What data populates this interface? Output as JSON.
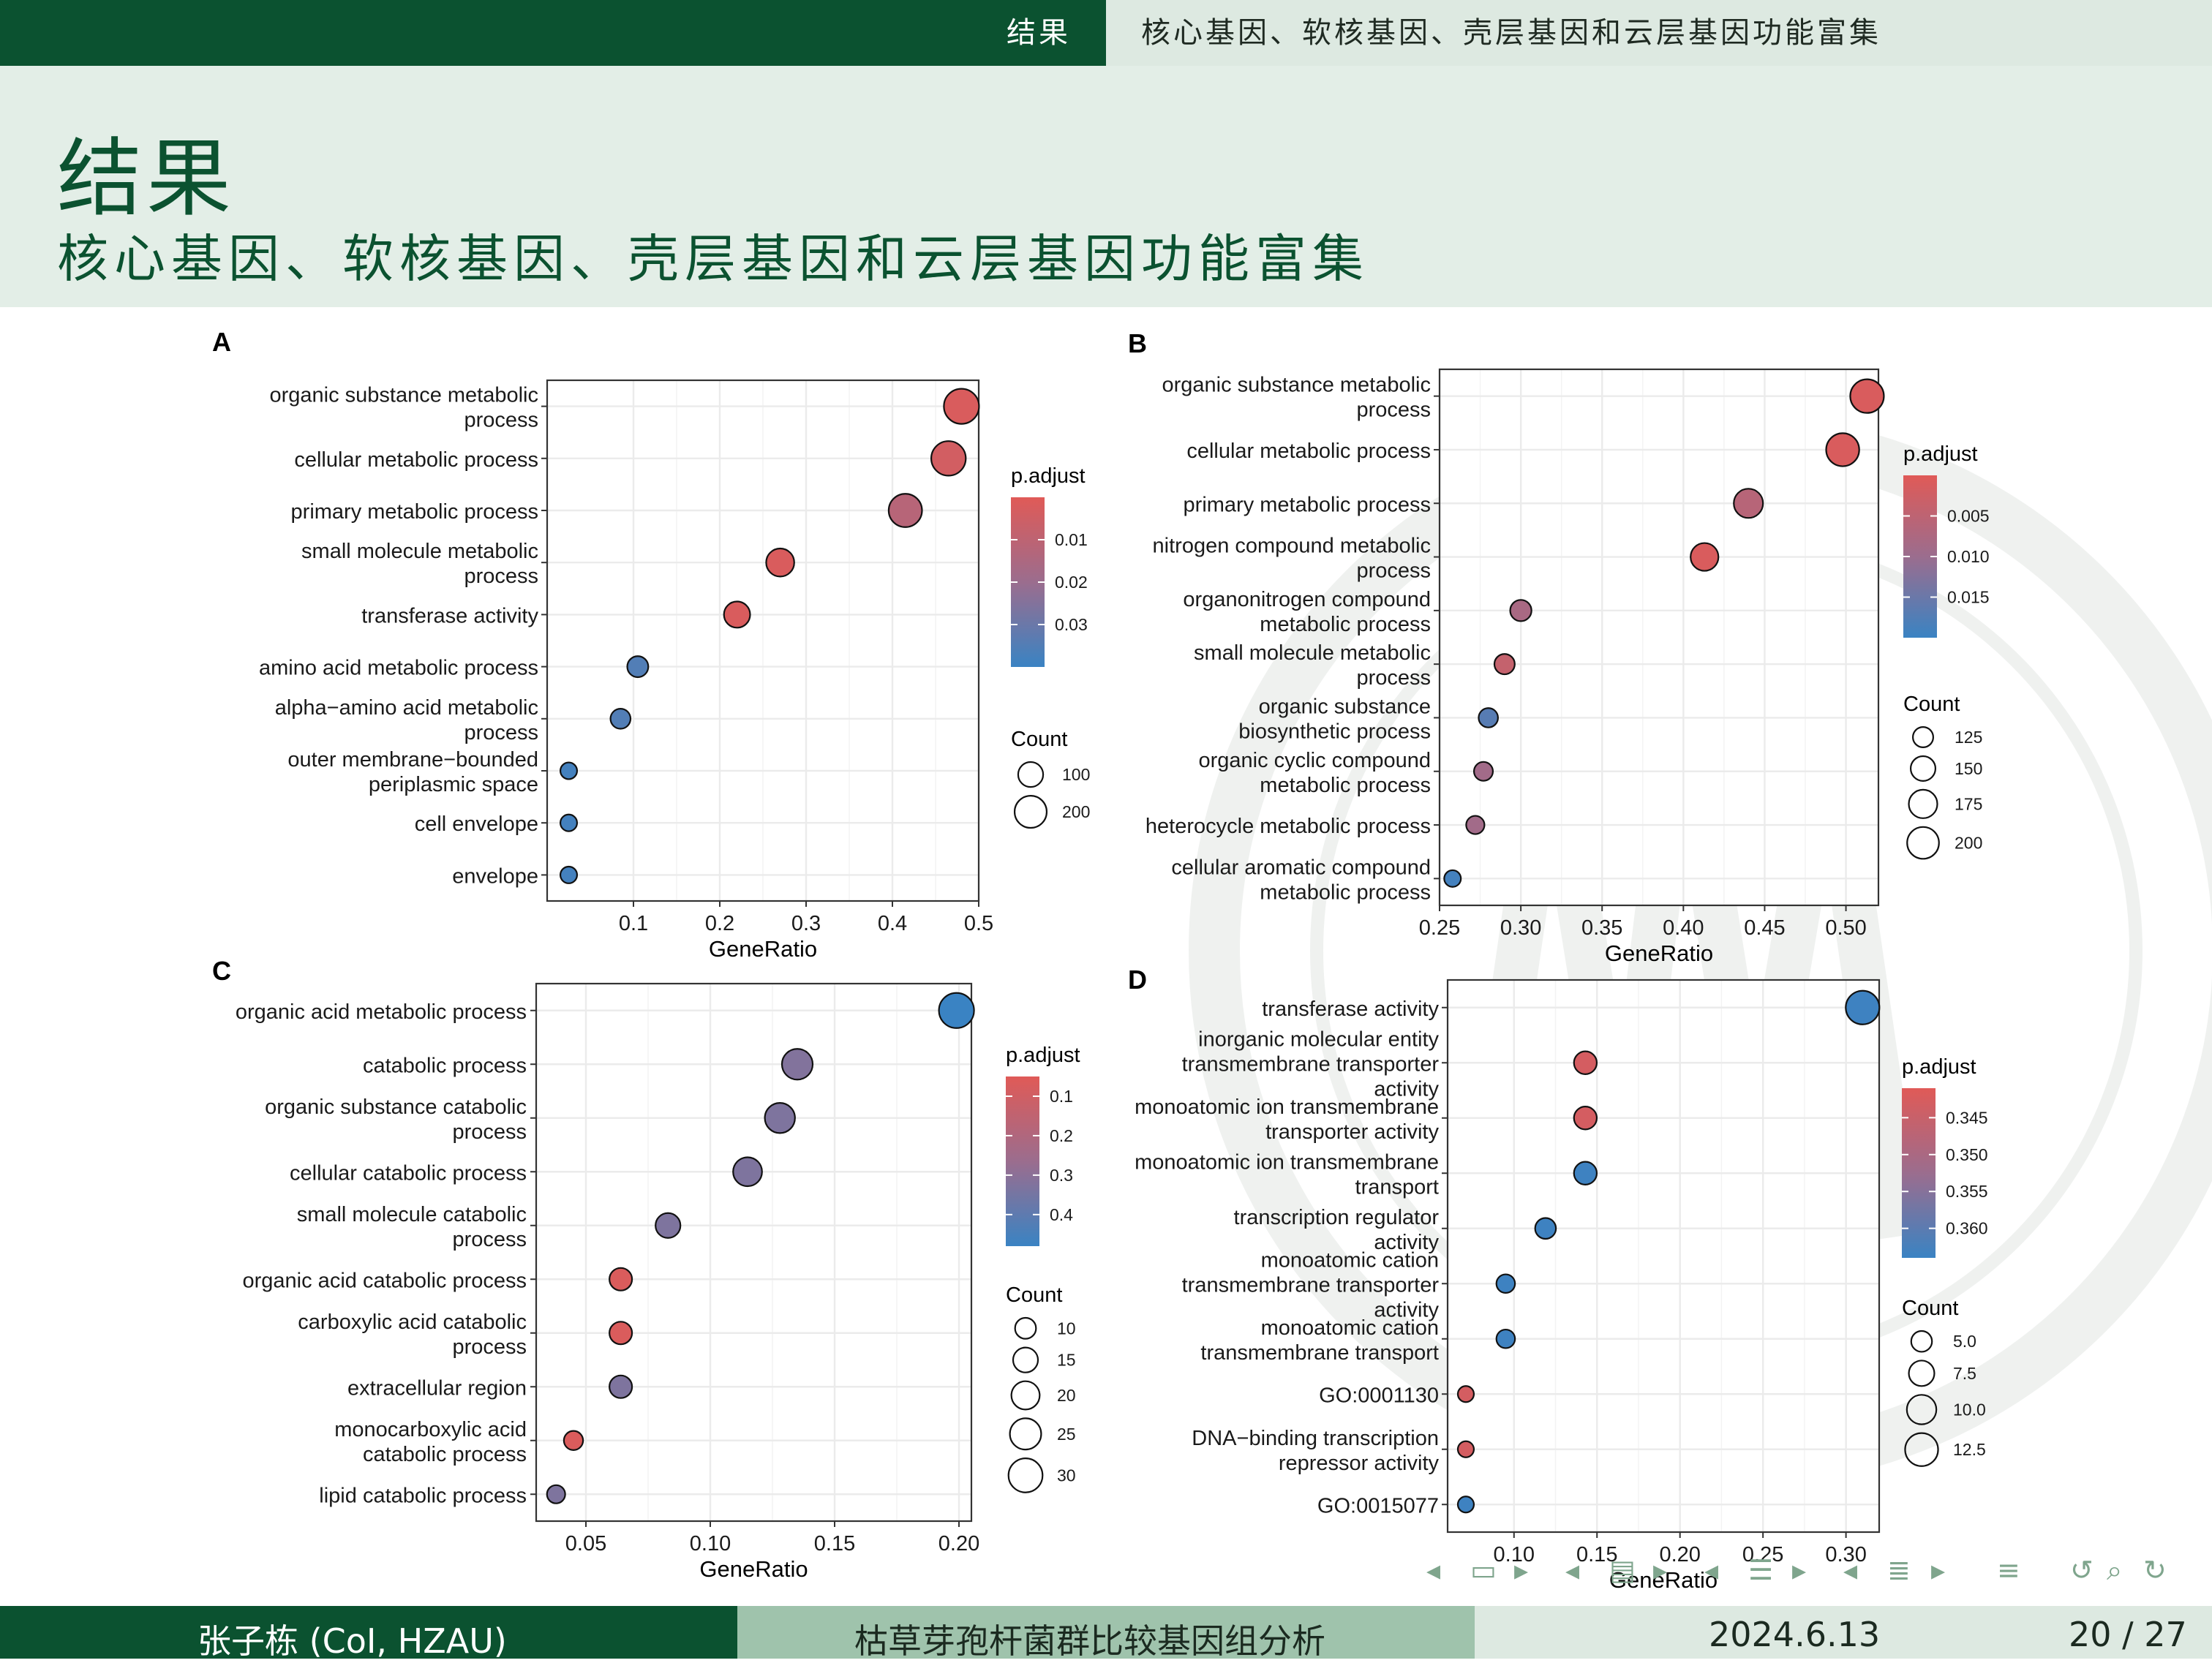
{
  "topbar": {
    "section": "结果",
    "subsection": "核心基因、软核基因、壳层基因和云层基因功能富集"
  },
  "header": {
    "title": "结果",
    "subtitle": "核心基因、软核基因、壳层基因和云层基因功能富集"
  },
  "footer": {
    "author": "张子栋  (CoI, HZAU)",
    "talk_title": "枯草芽孢杆菌群比较基因组分析",
    "date": "2024.6.13",
    "page": "20 / 27"
  },
  "navigation": {
    "icons": [
      "arrow-left-icon",
      "frame-icon",
      "arrow-right-icon",
      "arrow-left-icon",
      "subsection-icon",
      "arrow-right-icon",
      "arrow-left-icon",
      "section-icon",
      "arrow-right-icon",
      "arrow-left-icon",
      "section-list-icon",
      "arrow-right-icon",
      "align-icon",
      "undo-icon",
      "search-icon",
      "redo-icon"
    ]
  },
  "colors": {
    "low": "#e05a57",
    "mid": "#9b6d8e",
    "high": "#3a83c3",
    "dark_green": "#0b5230",
    "light_green": "#e3eee7"
  },
  "chart_data": [
    {
      "panel": "A",
      "type": "scatter",
      "xlabel": "GeneRatio",
      "xlim": [
        0.0,
        0.5
      ],
      "xticks": [
        0.1,
        0.2,
        0.3,
        0.4,
        0.5
      ],
      "xtick_labels": [
        "0.1",
        "0.2",
        "0.3",
        "0.4",
        "0.5"
      ],
      "categories": [
        "organic substance metabolic process",
        "cellular metabolic process",
        "primary metabolic process",
        "small molecule metabolic process",
        "transferase activity",
        "amino acid metabolic process",
        "alpha−amino acid metabolic process",
        "outer membrane−bounded periplasmic space",
        "cell envelope",
        "envelope"
      ],
      "gene_ratio": [
        0.48,
        0.465,
        0.415,
        0.27,
        0.22,
        0.105,
        0.085,
        0.025,
        0.025,
        0.025
      ],
      "count": [
        250,
        240,
        220,
        140,
        115,
        55,
        45,
        15,
        15,
        15
      ],
      "p_adjust": [
        0.002,
        0.004,
        0.012,
        0.002,
        0.002,
        0.035,
        0.035,
        0.038,
        0.038,
        0.038
      ],
      "color_legend": {
        "title": "p.adjust",
        "range": [
          0.0,
          0.04
        ],
        "ticks": [
          0.01,
          0.02,
          0.03
        ],
        "tick_labels": [
          "0.01",
          "0.02",
          "0.03"
        ]
      },
      "size_legend": {
        "title": "Count",
        "values": [
          100,
          200
        ],
        "labels": [
          "100",
          "200"
        ]
      }
    },
    {
      "panel": "B",
      "type": "scatter",
      "xlabel": "GeneRatio",
      "xlim": [
        0.25,
        0.52
      ],
      "xticks": [
        0.25,
        0.3,
        0.35,
        0.4,
        0.45,
        0.5
      ],
      "xtick_labels": [
        "0.25",
        "0.30",
        "0.35",
        "0.40",
        "0.45",
        "0.50"
      ],
      "categories": [
        "organic substance metabolic process",
        "cellular metabolic process",
        "primary metabolic process",
        "nitrogen compound metabolic process",
        "organonitrogen compound metabolic process",
        "small molecule metabolic process",
        "organic substance biosynthetic process",
        "organic cyclic compound metabolic process",
        "heterocycle metabolic process",
        "cellular aromatic compound metabolic process"
      ],
      "gene_ratio": [
        0.513,
        0.498,
        0.44,
        0.413,
        0.3,
        0.29,
        0.28,
        0.277,
        0.272,
        0.258
      ],
      "count": [
        215,
        210,
        180,
        170,
        130,
        125,
        120,
        118,
        115,
        108
      ],
      "p_adjust": [
        0.001,
        0.001,
        0.006,
        0.001,
        0.008,
        0.004,
        0.017,
        0.009,
        0.009,
        0.019
      ],
      "color_legend": {
        "title": "p.adjust",
        "range": [
          0.0,
          0.02
        ],
        "ticks": [
          0.005,
          0.01,
          0.015
        ],
        "tick_labels": [
          "0.005",
          "0.010",
          "0.015"
        ]
      },
      "size_legend": {
        "title": "Count",
        "values": [
          125,
          150,
          175,
          200
        ],
        "labels": [
          "125",
          "150",
          "175",
          "200"
        ]
      }
    },
    {
      "panel": "C",
      "type": "scatter",
      "xlabel": "GeneRatio",
      "xlim": [
        0.03,
        0.205
      ],
      "xticks": [
        0.05,
        0.1,
        0.15,
        0.2
      ],
      "xtick_labels": [
        "0.05",
        "0.10",
        "0.15",
        "0.20"
      ],
      "categories": [
        "organic acid metabolic process",
        "catabolic process",
        "organic substance catabolic process",
        "cellular catabolic process",
        "small molecule catabolic process",
        "organic acid catabolic process",
        "carboxylic acid catabolic process",
        "extracellular region",
        "monocarboxylic acid catabolic process",
        "lipid catabolic process"
      ],
      "gene_ratio": [
        0.199,
        0.135,
        0.128,
        0.115,
        0.083,
        0.064,
        0.064,
        0.064,
        0.045,
        0.038
      ],
      "count": [
        32,
        24,
        23,
        21,
        15,
        12,
        12,
        12,
        8,
        7
      ],
      "p_adjust": [
        0.48,
        0.32,
        0.33,
        0.33,
        0.33,
        0.07,
        0.07,
        0.33,
        0.07,
        0.33
      ],
      "color_legend": {
        "title": "p.adjust",
        "range": [
          0.05,
          0.48
        ],
        "ticks": [
          0.1,
          0.2,
          0.3,
          0.4
        ],
        "tick_labels": [
          "0.1",
          "0.2",
          "0.3",
          "0.4"
        ]
      },
      "size_legend": {
        "title": "Count",
        "values": [
          10,
          15,
          20,
          25,
          30
        ],
        "labels": [
          "10",
          "15",
          "20",
          "25",
          "30"
        ]
      }
    },
    {
      "panel": "D",
      "type": "scatter",
      "xlabel": "GeneRatio",
      "xlim": [
        0.06,
        0.32
      ],
      "xticks": [
        0.1,
        0.15,
        0.2,
        0.25,
        0.3
      ],
      "xtick_labels": [
        "0.10",
        "0.15",
        "0.20",
        "0.25",
        "0.30"
      ],
      "categories": [
        "transferase activity",
        "inorganic molecular entity transmembrane transporter activity",
        "monoatomic ion transmembrane transporter activity",
        "monoatomic ion transmembrane transport",
        "transcription regulator activity",
        "monoatomic cation transmembrane transporter activity",
        "monoatomic cation transmembrane transport",
        "GO:0001130",
        "DNA−binding transcription repressor activity",
        "GO:0015077"
      ],
      "gene_ratio": [
        0.31,
        0.143,
        0.143,
        0.143,
        0.119,
        0.095,
        0.095,
        0.071,
        0.071,
        0.071
      ],
      "count": [
        13,
        6,
        6,
        6,
        5,
        4,
        4,
        3,
        3,
        3
      ],
      "p_adjust": [
        0.3635,
        0.343,
        0.343,
        0.3635,
        0.3635,
        0.3635,
        0.3635,
        0.343,
        0.343,
        0.3635
      ],
      "color_legend": {
        "title": "p.adjust",
        "range": [
          0.341,
          0.364
        ],
        "ticks": [
          0.345,
          0.35,
          0.355,
          0.36
        ],
        "tick_labels": [
          "0.345",
          "0.350",
          "0.355",
          "0.360"
        ]
      },
      "size_legend": {
        "title": "Count",
        "values": [
          5.0,
          7.5,
          10.0,
          12.5
        ],
        "labels": [
          "5.0",
          "7.5",
          "10.0",
          "12.5"
        ]
      }
    }
  ]
}
